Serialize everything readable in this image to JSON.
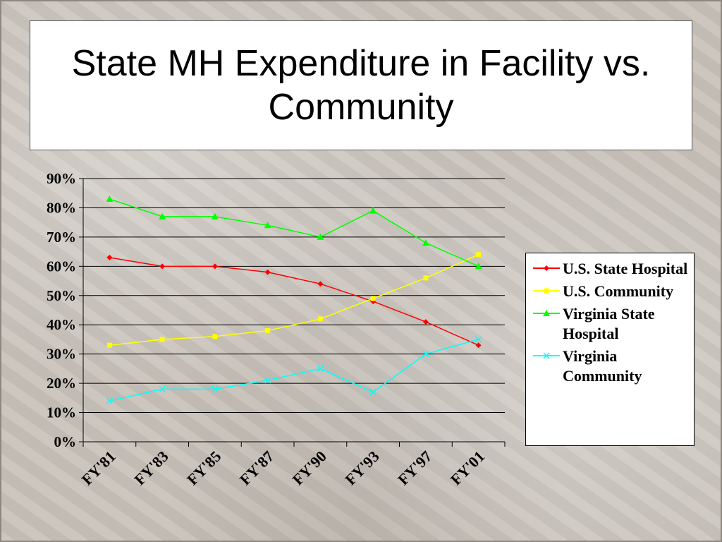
{
  "title": "State MH Expenditure in Facility vs. Community",
  "chart_data": {
    "type": "line",
    "title": "State MH Expenditure in Facility vs. Community",
    "categories": [
      "FY'81",
      "FY'83",
      "FY'85",
      "FY'87",
      "FY'90",
      "FY'93",
      "FY'97",
      "FY'01"
    ],
    "yticks": [
      "0%",
      "10%",
      "20%",
      "30%",
      "40%",
      "50%",
      "60%",
      "70%",
      "80%",
      "90%"
    ],
    "ylim": [
      0,
      90
    ],
    "grid": true,
    "legend": "right",
    "series": [
      {
        "name": "U.S. State Hospital",
        "color": "#ff0000",
        "marker": "diamond",
        "values": [
          63,
          60,
          60,
          58,
          54,
          48,
          41,
          33
        ]
      },
      {
        "name": "U.S. Community",
        "color": "#ffff00",
        "marker": "square",
        "values": [
          33,
          35,
          36,
          38,
          42,
          49,
          56,
          64
        ]
      },
      {
        "name": "Virginia State Hospital",
        "color": "#00ff00",
        "marker": "triangle",
        "values": [
          83,
          77,
          77,
          74,
          70,
          79,
          68,
          60
        ]
      },
      {
        "name": "Virginia Community",
        "color": "#00ffff",
        "marker": "x",
        "values": [
          14,
          18,
          18,
          21,
          25,
          17,
          30,
          35
        ]
      }
    ]
  }
}
